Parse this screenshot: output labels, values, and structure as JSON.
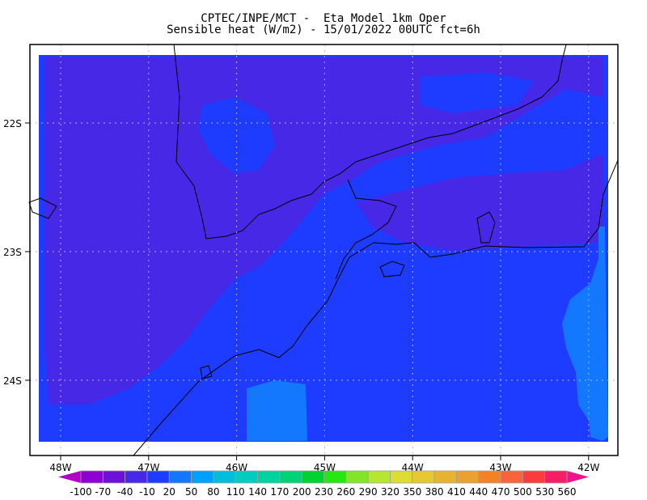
{
  "header": {
    "title_line1": "CPTEC/INPE/MCT -  Eta Model 1km Oper",
    "title_line2": "Sensible heat (W/m2) - 15/01/2022 00UTC fct=6h"
  },
  "map": {
    "lon_labels": [
      "48W",
      "47W",
      "46W",
      "45W",
      "44W",
      "43W",
      "42W"
    ],
    "lon_values": [
      -48,
      -47,
      -46,
      -45,
      -44,
      -43,
      -42
    ],
    "lat_labels": [
      "22S",
      "23S",
      "24S"
    ],
    "lat_values": [
      -22,
      -23,
      -24
    ],
    "grid": "dotted",
    "field_colors": {
      "low": "#4628e6",
      "mid": "#1e3cff",
      "high": "#1478ff"
    }
  },
  "colorbar": {
    "labels": [
      "-100",
      "-70",
      "-40",
      "-10",
      "20",
      "50",
      "80",
      "110",
      "140",
      "170",
      "200",
      "230",
      "260",
      "290",
      "320",
      "350",
      "380",
      "410",
      "440",
      "470",
      "500",
      "530",
      "560"
    ],
    "below_color": "#b000c8",
    "above_color": "#f0148c",
    "colors": [
      "#8c00d2",
      "#6e10d8",
      "#4628e6",
      "#1e3cff",
      "#1478ff",
      "#00a0ff",
      "#00bedc",
      "#00cdc0",
      "#00d2a0",
      "#00d278",
      "#00d232",
      "#28e614",
      "#82e628",
      "#b4e632",
      "#dcdc32",
      "#e6c832",
      "#e6b432",
      "#eba032",
      "#f08228",
      "#f5643c",
      "#fa3c3c",
      "#f51e64"
    ]
  }
}
